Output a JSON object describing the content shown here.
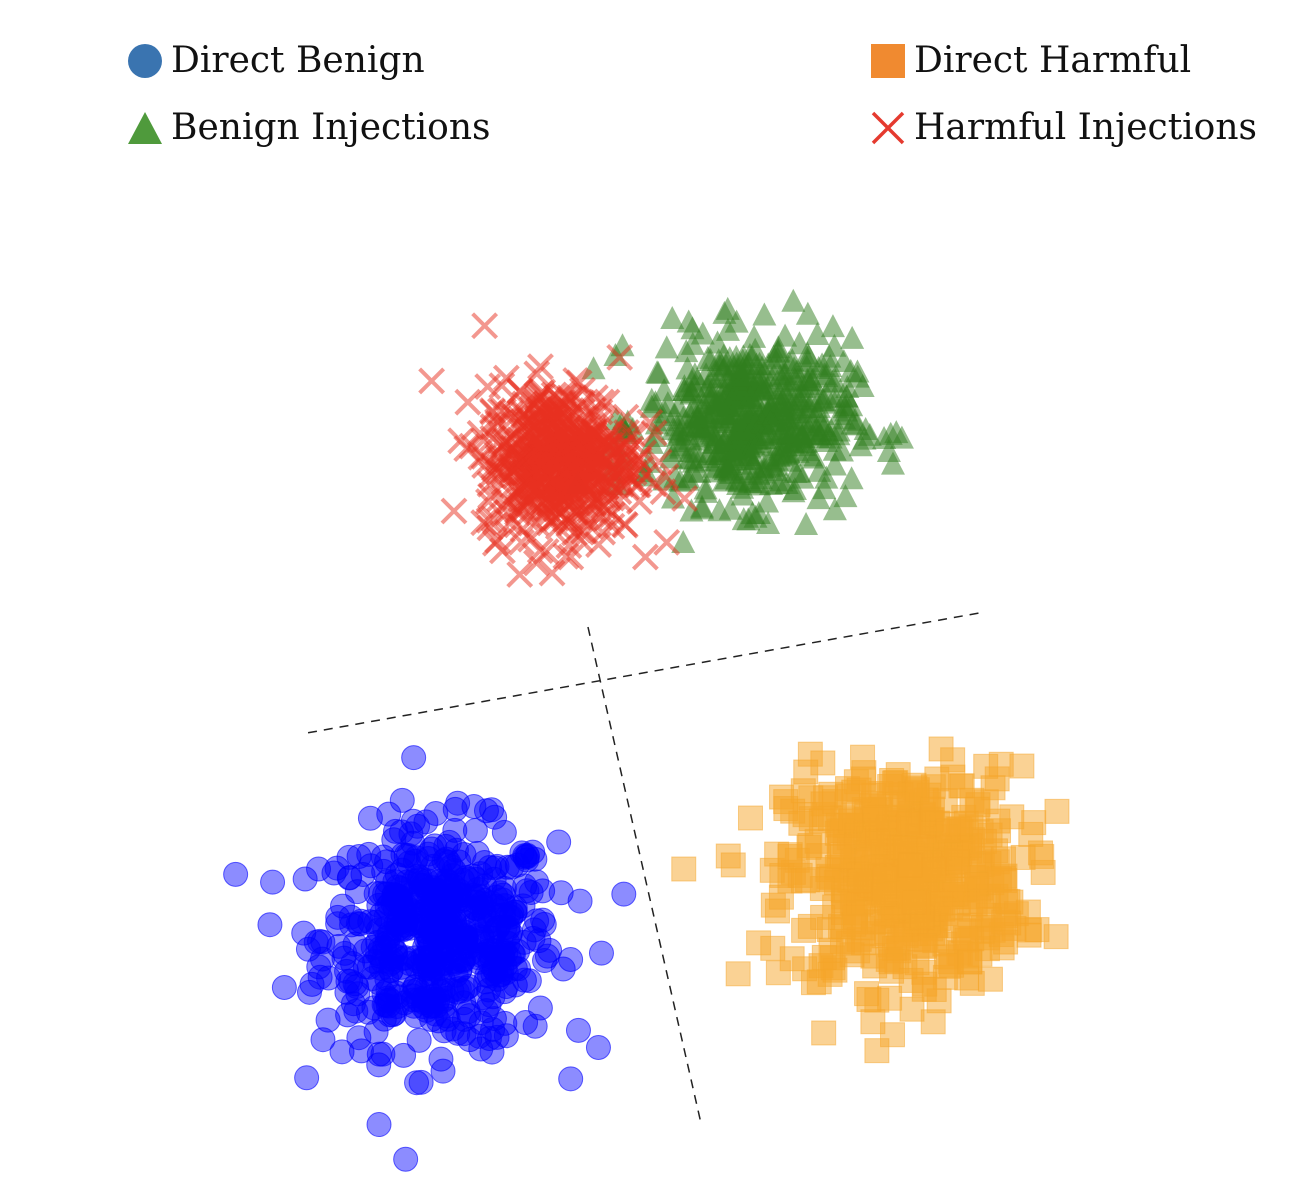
{
  "chart_data": {
    "type": "scatter",
    "title": "",
    "xlabel": "",
    "ylabel": "",
    "axes_visible": false,
    "grid": false,
    "xlim": [
      -10,
      10
    ],
    "ylim": [
      -10,
      10
    ],
    "legend_placement": "top",
    "series": [
      {
        "name": "Direct Benign",
        "marker": "circle",
        "color": "#0000ff",
        "legend_color": "#3a74b0",
        "center": [
          -5.6,
          -5.3
        ],
        "spread": [
          1.7,
          1.6
        ]
      },
      {
        "name": "Direct Harmful",
        "marker": "square",
        "color": "#f5a52a",
        "legend_color": "#f08a30",
        "center": [
          5.2,
          -3.9
        ],
        "spread": [
          1.7,
          1.6
        ]
      },
      {
        "name": "Benign Injections",
        "marker": "triangle",
        "color": "#2f7d1d",
        "legend_color": "#4f9a3c",
        "center": [
          1.6,
          6.7
        ],
        "spread": [
          1.5,
          1.2
        ]
      },
      {
        "name": "Harmful Injections",
        "marker": "x",
        "color": "#e8301f",
        "legend_color": "#e53a2f",
        "center": [
          -2.8,
          5.8
        ],
        "spread": [
          1.1,
          1.1
        ]
      }
    ],
    "separators": [
      {
        "style": "dashed",
        "from": [
          -8.65,
          -0.53
        ],
        "to": [
          6.98,
          2.26
        ]
      },
      {
        "style": "dashed",
        "from": [
          -2.14,
          1.93
        ],
        "to": [
          0.47,
          -9.53
        ]
      }
    ]
  }
}
